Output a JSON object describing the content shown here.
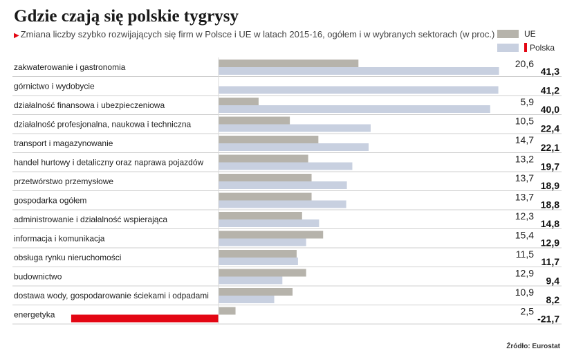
{
  "header": {
    "title": "Gdzie czają się polskie tygrysy",
    "subtitle": "Zmiana liczby szybko rozwijających się firm w Polsce i UE w latach 2015-16, ogółem i w wybranych sektorach (w proc.)"
  },
  "legend": [
    {
      "name": "UE",
      "color": "#b6b3ab"
    },
    {
      "name": "Polska",
      "color": "#c8d0e0",
      "accent": "#e30613"
    }
  ],
  "source": "Źródło: Eurostat",
  "chart_data": {
    "type": "bar",
    "orientation": "horizontal",
    "title": "Gdzie czają się polskie tygrysy",
    "subtitle": "Zmiana liczby szybko rozwijających się firm w Polsce i UE w latach 2015-16, ogółem i w wybranych sektorach (w proc.)",
    "xlim": [
      -21.7,
      41.3
    ],
    "grid": false,
    "legend_position": "top-right",
    "categories": [
      "zakwaterowanie i gastronomia",
      "górnictwo i wydobycie",
      "działalność finansowa i ubezpieczeniowa",
      "działalność profesjonalna, naukowa i techniczna",
      "transport i magazynowanie",
      "handel hurtowy i detaliczny oraz naprawa pojazdów",
      "przetwórstwo przemysłowe",
      "gospodarka ogółem",
      "administrowanie i działalność wspierająca",
      "informacja i komunikacja",
      "obsługa rynku nieruchomości",
      "budownictwo",
      "dostawa wody, gospodarowanie ściekami i odpadami",
      "energetyka"
    ],
    "series": [
      {
        "name": "UE",
        "color": "#b6b3ab",
        "values": [
          20.6,
          null,
          5.9,
          10.5,
          14.7,
          13.2,
          13.7,
          13.7,
          12.3,
          15.4,
          11.5,
          12.9,
          10.9,
          2.5
        ],
        "labels": [
          "20,6",
          "",
          "5,9",
          "10,5",
          "14,7",
          "13,2",
          "13,7",
          "13,7",
          "12,3",
          "15,4",
          "11,5",
          "12,9",
          "10,9",
          "2,5"
        ]
      },
      {
        "name": "Polska",
        "color": "#c8d0e0",
        "negative_color": "#e30613",
        "values": [
          41.3,
          41.2,
          40.0,
          22.4,
          22.1,
          19.7,
          18.9,
          18.8,
          14.8,
          12.9,
          11.7,
          9.4,
          8.2,
          -21.7
        ],
        "labels": [
          "41,3",
          "41,2",
          "40,0",
          "22,4",
          "22,1",
          "19,7",
          "18,9",
          "18,8",
          "14,8",
          "12,9",
          "11,7",
          "9,4",
          "8,2",
          "-21,7"
        ]
      }
    ]
  }
}
